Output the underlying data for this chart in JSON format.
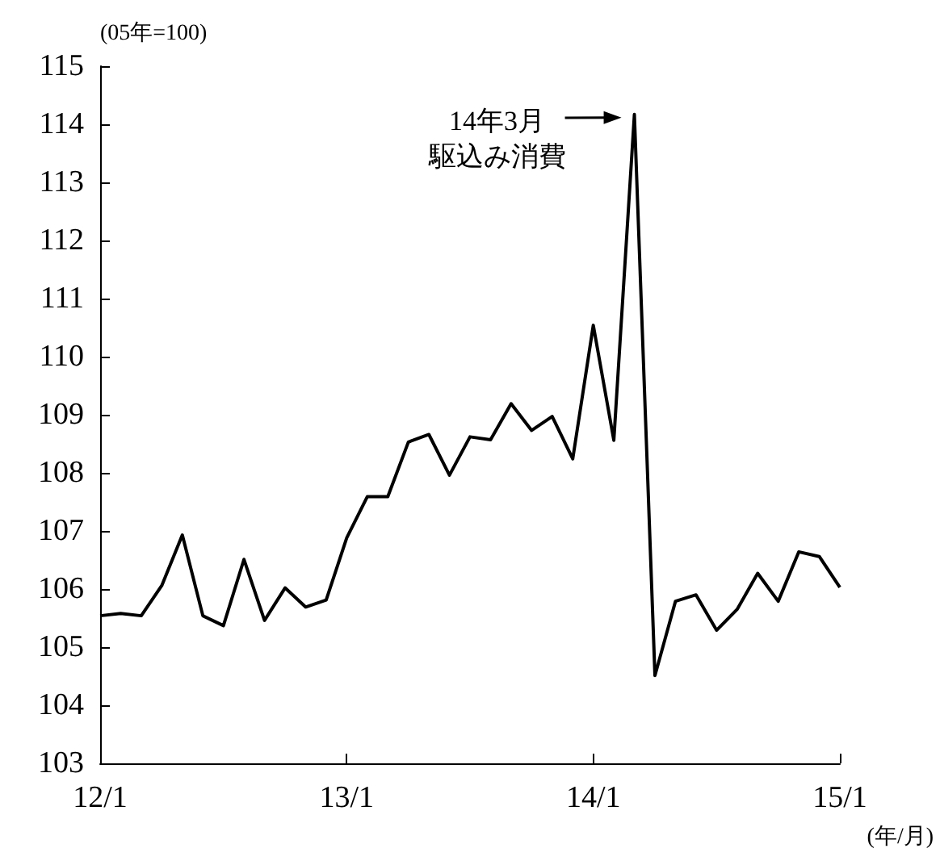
{
  "chart_data": {
    "type": "line",
    "ylabel": "(05年=100)",
    "xlabel": "(年/月)",
    "categories": [
      "12/1",
      null,
      null,
      null,
      null,
      null,
      null,
      null,
      null,
      null,
      null,
      null,
      "13/1",
      null,
      null,
      null,
      null,
      null,
      null,
      null,
      null,
      null,
      null,
      null,
      "14/1",
      null,
      null,
      null,
      null,
      null,
      null,
      null,
      null,
      null,
      null,
      null,
      "15/1"
    ],
    "series": [
      {
        "color": "#000000",
        "values": [
          105.54,
          105.58,
          105.54,
          106.06,
          106.93,
          105.54,
          105.37,
          106.51,
          105.46,
          106.02,
          105.69,
          105.81,
          106.88,
          107.59,
          107.59,
          108.53,
          108.66,
          107.96,
          108.62,
          108.57,
          109.19,
          108.73,
          108.97,
          108.24,
          110.54,
          108.56,
          114.17,
          104.51,
          105.79,
          105.9,
          105.29,
          105.65,
          106.27,
          105.79,
          106.64,
          106.56,
          106.03
        ]
      }
    ],
    "ylim": [
      103,
      115
    ],
    "yticks": [
      103,
      104,
      105,
      106,
      107,
      108,
      109,
      110,
      111,
      112,
      113,
      114,
      115
    ],
    "annotations": [
      "14年3月",
      "駆込み消費"
    ],
    "grid": false,
    "marker": "none",
    "line_style": "solid"
  }
}
